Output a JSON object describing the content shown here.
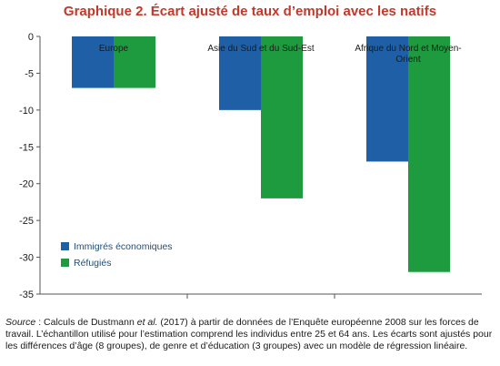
{
  "title": "Graphique 2. Écart ajusté de taux d’emploi avec les natifs",
  "chart_data": {
    "type": "bar",
    "categories": [
      "Europe",
      "Asie du Sud et du Sud-Est",
      "Afrique du Nord et Moyen-Orient"
    ],
    "category_label_lines": [
      [
        "Europe"
      ],
      [
        "Asie du Sud et du Sud-Est"
      ],
      [
        "Afrique du Nord et Moyen-",
        "Orient"
      ]
    ],
    "series": [
      {
        "name": "Immigrés économiques",
        "color": "#1f5fa6",
        "values": [
          -7,
          -10,
          -17
        ]
      },
      {
        "name": "Réfugiés",
        "color": "#1e9a3f",
        "values": [
          -7,
          -22,
          -32
        ]
      }
    ],
    "ylim": [
      -35,
      0
    ],
    "yticks": [
      0,
      -5,
      -10,
      -15,
      -20,
      -25,
      -30,
      -35
    ],
    "grid": false,
    "legend_position": "bottom-left"
  },
  "source": {
    "label": "Source",
    "text_1": " : Calculs de Dustmann ",
    "italic": "et al.",
    "text_2": " (2017) à partir de données de l’Enquête européenne 2008 sur les forces de travail. L’échantillon utilisé pour l’estimation comprend les individus entre 25 et 64 ans. Les écarts sont ajustés pour les différences d’âge (8 groupes), de genre et d’éducation (3 groupes) avec un modèle de régression linéaire."
  }
}
